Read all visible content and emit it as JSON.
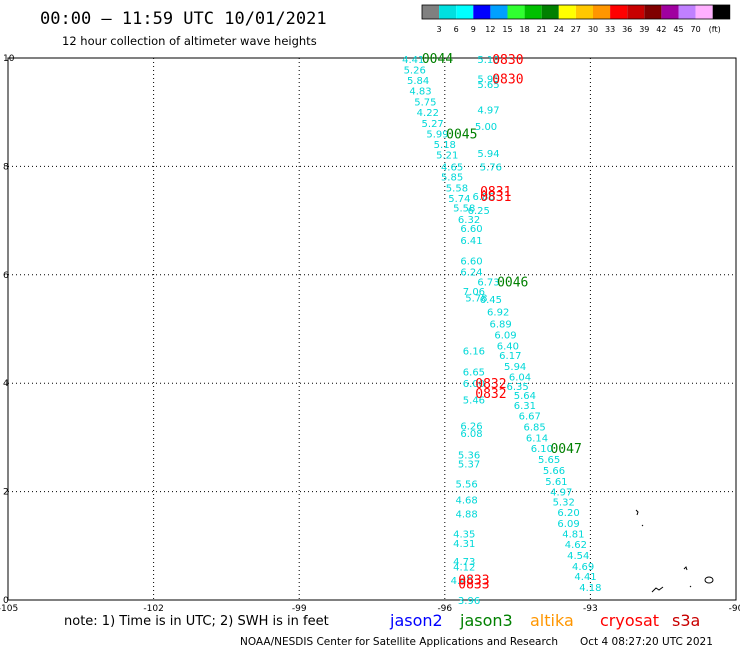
{
  "header": {
    "title": "00:00 – 11:59 UTC 10/01/2021",
    "subtitle": "12 hour collection of altimeter wave heights"
  },
  "legend": {
    "colors": [
      "#808080",
      "#00e0e0",
      "#00ffff",
      "#0000ff",
      "#00a0ff",
      "#30ff30",
      "#00c000",
      "#008000",
      "#ffff00",
      "#ffc800",
      "#ff9600",
      "#ff0000",
      "#c80000",
      "#800000",
      "#a000a0",
      "#c080ff",
      "#ffb0ff",
      "#000000"
    ],
    "labels": [
      "3",
      "6",
      "9",
      "12",
      "15",
      "18",
      "21",
      "24",
      "27",
      "30",
      "33",
      "36",
      "39",
      "42",
      "45",
      "70"
    ],
    "unit": "(ft)"
  },
  "footer": {
    "note": "note: 1) Time is in UTC; 2) SWH is in feet",
    "satellites": [
      {
        "name": "jason2",
        "color": "#0000ff"
      },
      {
        "name": "jason3",
        "color": "#008000"
      },
      {
        "name": "altika",
        "color": "#ff9600"
      },
      {
        "name": "cryosat",
        "color": "#ff0000"
      },
      {
        "name": "s3a",
        "color": "#c80000"
      }
    ],
    "credit": "NOAA/NESDIS Center for Satellite Applications and Research",
    "timestamp": "Oct  4 08:27:20 UTC 2021"
  },
  "chart_data": {
    "type": "scatter",
    "xlim": [
      -105,
      -90
    ],
    "ylim": [
      0,
      10
    ],
    "x_ticks": [
      -105,
      -102,
      -99,
      -96,
      -93,
      -90
    ],
    "x_tick_labels": [
      "-105",
      "-102",
      "-99",
      "-96",
      "-93",
      "-90"
    ],
    "y_ticks": [
      0,
      2,
      4,
      6,
      8,
      10
    ],
    "grid": true,
    "swh_points": [
      {
        "x": -96.65,
        "y": 9.98,
        "v": "4.41"
      },
      {
        "x": -96.62,
        "y": 9.79,
        "v": "5.26"
      },
      {
        "x": -96.55,
        "y": 9.59,
        "v": "5.84"
      },
      {
        "x": -96.5,
        "y": 9.4,
        "v": "4.83"
      },
      {
        "x": -96.4,
        "y": 9.2,
        "v": "5.75"
      },
      {
        "x": -96.35,
        "y": 9.0,
        "v": "4.22"
      },
      {
        "x": -96.25,
        "y": 8.8,
        "v": "5.27"
      },
      {
        "x": -96.15,
        "y": 8.61,
        "v": "5.99"
      },
      {
        "x": -96.0,
        "y": 8.41,
        "v": "5.18"
      },
      {
        "x": -95.95,
        "y": 8.22,
        "v": "5.21"
      },
      {
        "x": -95.85,
        "y": 8.0,
        "v": "4.65"
      },
      {
        "x": -95.85,
        "y": 7.81,
        "v": "5.85"
      },
      {
        "x": -95.75,
        "y": 7.61,
        "v": "5.58"
      },
      {
        "x": -95.7,
        "y": 7.42,
        "v": "5.74"
      },
      {
        "x": -95.6,
        "y": 7.24,
        "v": "5.58"
      },
      {
        "x": -95.5,
        "y": 7.03,
        "v": "6.32"
      },
      {
        "x": -95.45,
        "y": 6.86,
        "v": "6.60"
      },
      {
        "x": -95.45,
        "y": 6.64,
        "v": "6.41"
      },
      {
        "x": -95.45,
        "y": 6.26,
        "v": "6.60"
      },
      {
        "x": -95.45,
        "y": 6.06,
        "v": "6.24"
      },
      {
        "x": -95.1,
        "y": 5.88,
        "v": "6.73"
      },
      {
        "x": -95.4,
        "y": 5.7,
        "v": "7.06"
      },
      {
        "x": -95.35,
        "y": 5.58,
        "v": "5.78"
      },
      {
        "x": -95.4,
        "y": 4.6,
        "v": "6.16"
      },
      {
        "x": -95.4,
        "y": 4.22,
        "v": "6.65"
      },
      {
        "x": -95.4,
        "y": 4.0,
        "v": "6.00"
      },
      {
        "x": -95.4,
        "y": 3.7,
        "v": "5.46"
      },
      {
        "x": -95.45,
        "y": 3.22,
        "v": "6.26"
      },
      {
        "x": -95.45,
        "y": 3.08,
        "v": "6.08"
      },
      {
        "x": -95.5,
        "y": 2.68,
        "v": "5.36"
      },
      {
        "x": -95.5,
        "y": 2.52,
        "v": "5.37"
      },
      {
        "x": -95.55,
        "y": 2.15,
        "v": "5.56"
      },
      {
        "x": -95.55,
        "y": 1.85,
        "v": "4.68"
      },
      {
        "x": -95.55,
        "y": 1.6,
        "v": "4.88"
      },
      {
        "x": -95.6,
        "y": 1.23,
        "v": "4.35"
      },
      {
        "x": -95.6,
        "y": 1.05,
        "v": "4.31"
      },
      {
        "x": -95.6,
        "y": 0.72,
        "v": "4.73"
      },
      {
        "x": -95.6,
        "y": 0.62,
        "v": "4.12"
      },
      {
        "x": -95.65,
        "y": 0.37,
        "v": "4.40"
      },
      {
        "x": -95.5,
        "y": 0.0,
        "v": "3.96"
      },
      {
        "x": -95.1,
        "y": 9.98,
        "v": "5.18"
      },
      {
        "x": -95.1,
        "y": 9.62,
        "v": "5.95"
      },
      {
        "x": -95.1,
        "y": 9.52,
        "v": "5.65"
      },
      {
        "x": -95.1,
        "y": 9.05,
        "v": "4.97"
      },
      {
        "x": -95.15,
        "y": 8.75,
        "v": "5.00"
      },
      {
        "x": -95.1,
        "y": 8.25,
        "v": "5.94"
      },
      {
        "x": -95.05,
        "y": 8.0,
        "v": "5.76"
      },
      {
        "x": -95.2,
        "y": 7.45,
        "v": "6.86"
      },
      {
        "x": -95.3,
        "y": 7.2,
        "v": "6.25"
      },
      {
        "x": -95.05,
        "y": 5.55,
        "v": "6.45"
      },
      {
        "x": -94.9,
        "y": 5.32,
        "v": "6.92"
      },
      {
        "x": -94.85,
        "y": 5.1,
        "v": "6.89"
      },
      {
        "x": -94.75,
        "y": 4.9,
        "v": "6.09"
      },
      {
        "x": -94.7,
        "y": 4.7,
        "v": "6.40"
      },
      {
        "x": -94.65,
        "y": 4.52,
        "v": "6.17"
      },
      {
        "x": -94.55,
        "y": 4.32,
        "v": "5.94"
      },
      {
        "x": -94.45,
        "y": 4.12,
        "v": "6.04"
      },
      {
        "x": -94.5,
        "y": 3.95,
        "v": "6.35"
      },
      {
        "x": -94.35,
        "y": 3.78,
        "v": "5.64"
      },
      {
        "x": -94.35,
        "y": 3.6,
        "v": "6.31"
      },
      {
        "x": -94.25,
        "y": 3.4,
        "v": "6.67"
      },
      {
        "x": -94.15,
        "y": 3.2,
        "v": "6.85"
      },
      {
        "x": -94.1,
        "y": 3.0,
        "v": "6.14"
      },
      {
        "x": -94.0,
        "y": 2.8,
        "v": "6.10"
      },
      {
        "x": -93.85,
        "y": 2.6,
        "v": "5.65"
      },
      {
        "x": -93.75,
        "y": 2.4,
        "v": "5.66"
      },
      {
        "x": -93.7,
        "y": 2.2,
        "v": "5.61"
      },
      {
        "x": -93.6,
        "y": 2.0,
        "v": "4.97"
      },
      {
        "x": -93.55,
        "y": 1.82,
        "v": "5.32"
      },
      {
        "x": -93.45,
        "y": 1.62,
        "v": "6.20"
      },
      {
        "x": -93.45,
        "y": 1.42,
        "v": "6.09"
      },
      {
        "x": -93.35,
        "y": 1.23,
        "v": "4.81"
      },
      {
        "x": -93.3,
        "y": 1.03,
        "v": "4.62"
      },
      {
        "x": -93.25,
        "y": 0.83,
        "v": "4.54"
      },
      {
        "x": -93.15,
        "y": 0.63,
        "v": "4.69"
      },
      {
        "x": -93.1,
        "y": 0.44,
        "v": "4.41"
      },
      {
        "x": -93.0,
        "y": 0.24,
        "v": "4.18"
      }
    ],
    "pass_labels": [
      {
        "x": -96.15,
        "y": 10.0,
        "v": "0044",
        "sat": "jason3"
      },
      {
        "x": -95.65,
        "y": 8.61,
        "v": "0045",
        "sat": "jason3"
      },
      {
        "x": -94.6,
        "y": 5.88,
        "v": "0046",
        "sat": "jason3"
      },
      {
        "x": -93.5,
        "y": 2.8,
        "v": "0047",
        "sat": "jason3"
      },
      {
        "x": -94.7,
        "y": 9.98,
        "v": "0830",
        "sat": "cryosat"
      },
      {
        "x": -94.7,
        "y": 9.62,
        "v": "0830",
        "sat": "cryosat"
      },
      {
        "x": -94.95,
        "y": 7.55,
        "v": "0831",
        "sat": "cryosat"
      },
      {
        "x": -94.95,
        "y": 7.45,
        "v": "0831",
        "sat": "cryosat"
      },
      {
        "x": -95.05,
        "y": 4.0,
        "v": "0832",
        "sat": "cryosat"
      },
      {
        "x": -95.05,
        "y": 3.82,
        "v": "0832",
        "sat": "cryosat"
      },
      {
        "x": -95.4,
        "y": 0.38,
        "v": "0833",
        "sat": "cryosat"
      },
      {
        "x": -95.4,
        "y": 0.3,
        "v": "0833",
        "sat": "cryosat"
      }
    ]
  }
}
